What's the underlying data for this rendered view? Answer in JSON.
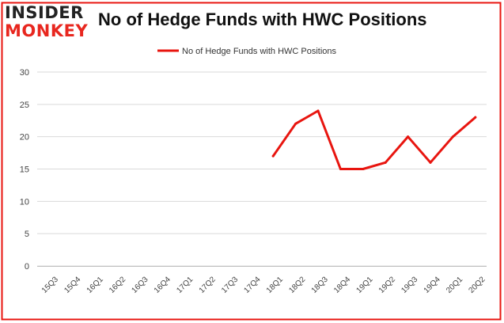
{
  "logo": {
    "line1": "INSIDER",
    "line2": "MONKEY"
  },
  "colors": {
    "series": "#e8150f",
    "frame": "#e8150f",
    "grid": "#d9d9d9",
    "axis_text": "#444444"
  },
  "chart_data": {
    "type": "line",
    "title": "No of Hedge Funds with HWC Positions",
    "xlabel": "",
    "ylabel": "",
    "categories": [
      "15Q3",
      "15Q4",
      "16Q1",
      "16Q2",
      "16Q3",
      "16Q4",
      "17Q1",
      "17Q2",
      "17Q3",
      "17Q4",
      "18Q1",
      "18Q2",
      "18Q3",
      "18Q4",
      "19Q1",
      "19Q2",
      "19Q3",
      "19Q4",
      "20Q1",
      "20Q2"
    ],
    "series": [
      {
        "name": "No of Hedge Funds with HWC Positions",
        "values": [
          null,
          null,
          null,
          null,
          null,
          null,
          null,
          null,
          null,
          null,
          17,
          22,
          24,
          15,
          15,
          16,
          20,
          16,
          20,
          23
        ]
      }
    ],
    "ylim": [
      0,
      30
    ],
    "yticks": [
      0,
      5,
      10,
      15,
      20,
      25,
      30
    ],
    "grid": true,
    "legend": "top-center"
  }
}
